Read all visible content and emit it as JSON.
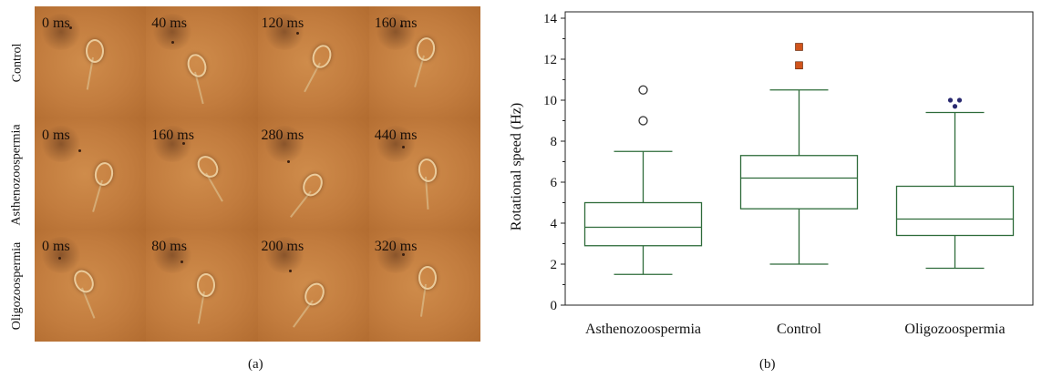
{
  "panel_a": {
    "caption": "(a)",
    "rows": [
      {
        "label": "Control",
        "times": [
          "0 ms",
          "40 ms",
          "120 ms",
          "160 ms"
        ]
      },
      {
        "label": "Asthenozoospermia",
        "times": [
          "0 ms",
          "160 ms",
          "280 ms",
          "440 ms"
        ]
      },
      {
        "label": "Oligozoospermia",
        "times": [
          "0 ms",
          "80 ms",
          "200 ms",
          "320 ms"
        ]
      }
    ]
  },
  "panel_b": {
    "caption": "(b)"
  },
  "chart_data": {
    "type": "box",
    "title": "",
    "xlabel": "",
    "ylabel": "Rotational speed (Hz)",
    "ylim": [
      0,
      14
    ],
    "yticks": [
      0,
      2,
      4,
      6,
      8,
      10,
      12,
      14
    ],
    "grid": false,
    "legend": "none",
    "color": "#2e6b3a",
    "categories": [
      "Asthenozoospermia",
      "Control",
      "Oligozoospermia"
    ],
    "boxes": [
      {
        "min": 1.5,
        "q1": 2.9,
        "median": 3.8,
        "q3": 5.0,
        "max": 7.5,
        "outliers": [
          9.0,
          10.5
        ],
        "outlier_marker": "open-circle",
        "outlier_color": "#333333"
      },
      {
        "min": 2.0,
        "q1": 4.7,
        "median": 6.2,
        "q3": 7.3,
        "max": 10.5,
        "outliers": [
          11.7,
          12.6
        ],
        "outlier_marker": "filled-square",
        "outlier_color": "#d0541c"
      },
      {
        "min": 1.8,
        "q1": 3.4,
        "median": 4.2,
        "q3": 5.8,
        "max": 9.4,
        "outliers": [
          9.7,
          10.0,
          10.0
        ],
        "outlier_marker": "filled-dot",
        "outlier_color": "#2a2a70"
      }
    ]
  }
}
